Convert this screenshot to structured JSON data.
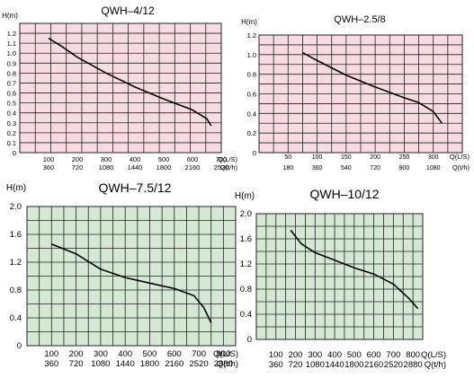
{
  "colors": {
    "pink": "#f7dbe3",
    "green": "#d4e8d4",
    "grid": "#222222",
    "curve": "#000000"
  },
  "chart_data": [
    {
      "type": "line",
      "title": "QWH–4/12",
      "ylabel": "H(m)",
      "xlabel": "Q(L/S)",
      "xlabel2": "Q(t/h)",
      "xlim": [
        0,
        700
      ],
      "ylim": [
        0,
        1.3
      ],
      "grid": true,
      "background": "pink",
      "y_ticks": [
        "0",
        "0.1",
        "0.2",
        "0.3",
        "0.4",
        "0.5",
        "0.6",
        "0.7",
        "0.8",
        "0.9",
        "1.0",
        "1.1",
        "1.2"
      ],
      "x_ticks": [
        "100",
        "200",
        "300",
        "400",
        "500",
        "600",
        "700"
      ],
      "x_ticks2": [
        "360",
        "720",
        "1080",
        "1440",
        "1800",
        "2160",
        "2520"
      ],
      "series": [
        {
          "x": [
            100,
            150,
            200,
            300,
            400,
            500,
            600,
            650,
            665
          ],
          "y": [
            1.15,
            1.06,
            0.96,
            0.8,
            0.66,
            0.54,
            0.43,
            0.34,
            0.27
          ]
        }
      ]
    },
    {
      "type": "line",
      "title": "QWH–2.5/8",
      "ylabel": "H(m)",
      "xlabel": "Q(L/S)",
      "xlabel2": "Q(t/h)",
      "xlim": [
        0,
        350
      ],
      "ylim": [
        0,
        1.2
      ],
      "grid": true,
      "background": "pink",
      "y_ticks": [
        "0",
        "0.2",
        "0.4",
        "0.6",
        "0.8",
        "1.0",
        "1.2"
      ],
      "x_ticks": [
        "50",
        "100",
        "150",
        "200",
        "250",
        "300"
      ],
      "x_ticks2": [
        "180",
        "360",
        "540",
        "720",
        "900",
        "1080"
      ],
      "series": [
        {
          "x": [
            75,
            100,
            150,
            200,
            250,
            275,
            300,
            315
          ],
          "y": [
            1.02,
            0.94,
            0.79,
            0.67,
            0.56,
            0.51,
            0.42,
            0.3
          ]
        }
      ]
    },
    {
      "type": "line",
      "title": "QWH–7.5/12",
      "ylabel": "H(m)",
      "xlabel": "Q(L/S)",
      "xlabel2": "Q(t/h)",
      "xlim": [
        0,
        850
      ],
      "ylim": [
        0,
        2.0
      ],
      "grid": true,
      "background": "green",
      "y_ticks": [
        "0",
        "0.4",
        "0.8",
        "1.2",
        "1.6",
        "2.0"
      ],
      "x_ticks": [
        "100",
        "200",
        "300",
        "400",
        "500",
        "600",
        "700",
        "800"
      ],
      "x_ticks2": [
        "360",
        "720",
        "1080",
        "1440",
        "1800",
        "2160",
        "2520",
        "2880"
      ],
      "series": [
        {
          "x": [
            100,
            200,
            300,
            400,
            500,
            600,
            680,
            720,
            750
          ],
          "y": [
            1.46,
            1.32,
            1.1,
            0.98,
            0.9,
            0.82,
            0.72,
            0.55,
            0.33
          ]
        }
      ]
    },
    {
      "type": "line",
      "title": "QWH–10/12",
      "ylabel": "H(m)",
      "xlabel": "Q(L/S)",
      "xlabel2": "Q(t/h)",
      "xlim": [
        0,
        850
      ],
      "ylim": [
        0,
        2.0
      ],
      "grid": true,
      "background": "green",
      "y_ticks": [
        "0",
        "0.4",
        "0.8",
        "1.2",
        "1.6",
        "2.0"
      ],
      "x_ticks": [
        "100",
        "200",
        "300",
        "400",
        "500",
        "600",
        "700",
        "800"
      ],
      "x_ticks2": [
        "360",
        "720",
        "1080",
        "1440",
        "1800",
        "2160",
        "2520",
        "2880"
      ],
      "series": [
        {
          "x": [
            175,
            230,
            300,
            400,
            500,
            600,
            700,
            780,
            825
          ],
          "y": [
            1.74,
            1.52,
            1.38,
            1.26,
            1.14,
            1.04,
            0.88,
            0.65,
            0.49
          ]
        }
      ]
    }
  ]
}
